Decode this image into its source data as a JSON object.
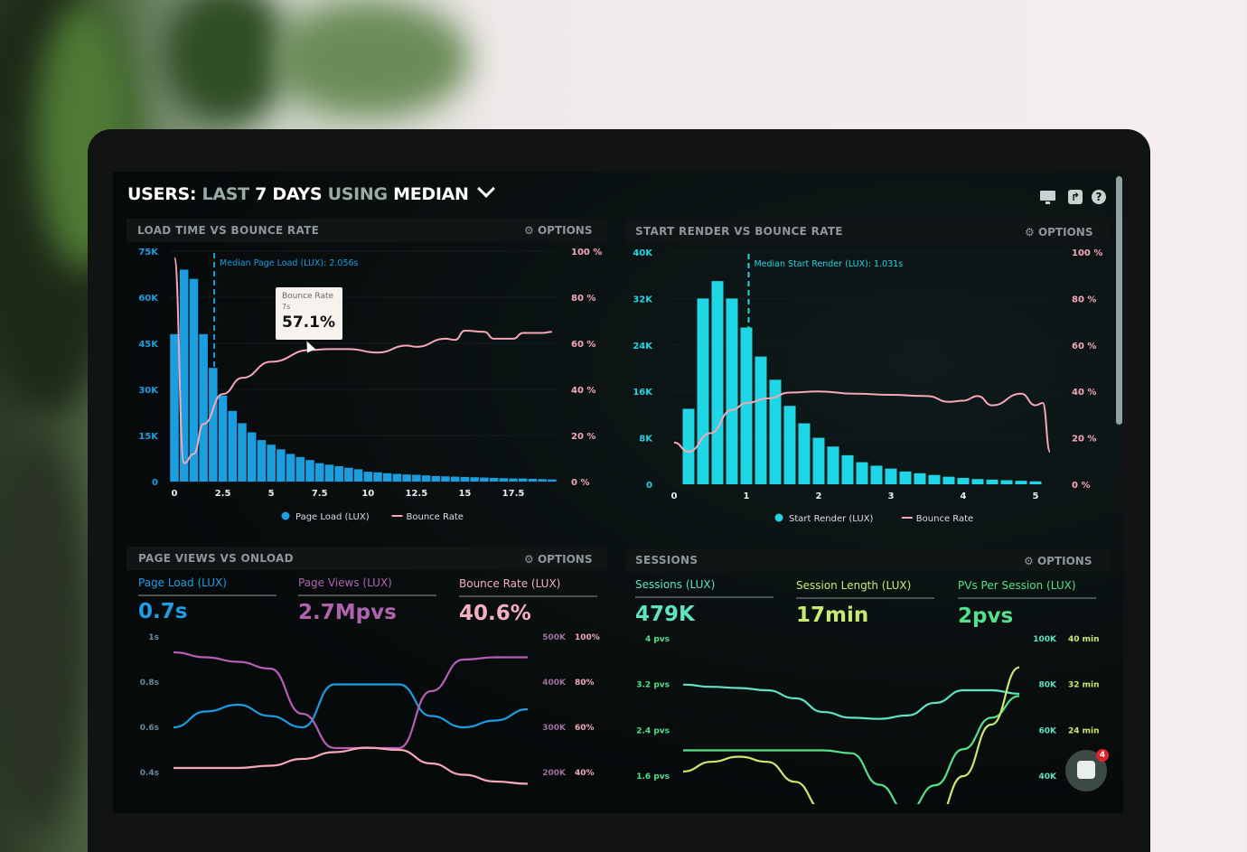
{
  "header": {
    "title_parts": [
      "USERS:",
      "LAST",
      "7 DAYS",
      "USING",
      "MEDIAN"
    ],
    "icons": [
      "monitor-icon",
      "share-icon",
      "help-icon"
    ]
  },
  "options_label": "OPTIONS",
  "colors": {
    "blue": "#1a9ee0",
    "cyan": "#1fd6e4",
    "pink": "#f4a8b8",
    "purple": "#b45fb4",
    "teal": "#5fe3c3",
    "lime": "#c9ea70",
    "green": "#55e08a"
  },
  "panels": {
    "load_time": {
      "title": "LOAD TIME VS BOUNCE RATE"
    },
    "start_render": {
      "title": "START RENDER VS BOUNCE RATE"
    },
    "page_views": {
      "title": "PAGE VIEWS VS ONLOAD",
      "stats": [
        {
          "label": "Page Load (LUX)",
          "value": "0.7s"
        },
        {
          "label": "Page Views (LUX)",
          "value": "2.7Mpvs"
        },
        {
          "label": "Bounce Rate (LUX)",
          "value": "40.6%"
        }
      ]
    },
    "sessions": {
      "title": "SESSIONS",
      "stats": [
        {
          "label": "Sessions (LUX)",
          "value": "479K"
        },
        {
          "label": "Session Length (LUX)",
          "value": "17min"
        },
        {
          "label": "PVs Per Session (LUX)",
          "value": "2pvs"
        }
      ]
    }
  },
  "tooltip": {
    "title": "Bounce Rate",
    "x": "7s",
    "value": "57.1%"
  },
  "chat": {
    "badge": "4"
  },
  "chart_data": [
    {
      "type": "bar",
      "title": "LOAD TIME VS BOUNCE RATE",
      "bin_width": 0.5,
      "x_ticks": [
        "0",
        "2.5",
        "5",
        "7.5",
        "10",
        "12.5",
        "15",
        "17.5"
      ],
      "y_ticks": [
        "0",
        "15K",
        "30K",
        "45K",
        "60K",
        "75K"
      ],
      "y2_ticks": [
        "0 %",
        "20 %",
        "40 %",
        "60 %",
        "80 %",
        "100 %"
      ],
      "ylim": [
        0,
        75000
      ],
      "y2lim": [
        0,
        100
      ],
      "annotation": "Median Page Load (LUX): 2.056s",
      "median": 2.056,
      "legend": [
        "Page Load (LUX)",
        "Bounce Rate"
      ],
      "bars": [
        48,
        69,
        66,
        48,
        37,
        28,
        23,
        19,
        16,
        13.5,
        12,
        10.5,
        9,
        8,
        7,
        6,
        5.5,
        5,
        4.5,
        4,
        3.2,
        3,
        2.7,
        2.5,
        2.3,
        2.2,
        2,
        1.8,
        1.7,
        1.6,
        1.5,
        1.4,
        1.3,
        1.2,
        1.1,
        1,
        1,
        0.9,
        0.8,
        0.7
      ],
      "bars_unit": "K",
      "line": [
        [
          0,
          97
        ],
        [
          0.5,
          8
        ],
        [
          1,
          12
        ],
        [
          1.5,
          25
        ],
        [
          2.5,
          38
        ],
        [
          3.5,
          45
        ],
        [
          5,
          52
        ],
        [
          7,
          57.1
        ],
        [
          8,
          57.5
        ],
        [
          9,
          57.5
        ],
        [
          10.5,
          56
        ],
        [
          12,
          59
        ],
        [
          12.5,
          58.5
        ],
        [
          14,
          62
        ],
        [
          14.5,
          61.5
        ],
        [
          15,
          65.5
        ],
        [
          16,
          65
        ],
        [
          16.5,
          62
        ],
        [
          17.5,
          62
        ],
        [
          18,
          64.5
        ],
        [
          19,
          64.5
        ],
        [
          19.5,
          65
        ]
      ]
    },
    {
      "type": "bar",
      "title": "START RENDER VS BOUNCE RATE",
      "bin_width": 0.2,
      "x_ticks": [
        "0",
        "1",
        "2",
        "3",
        "4",
        "5"
      ],
      "y_ticks": [
        "0",
        "8K",
        "16K",
        "24K",
        "32K",
        "40K"
      ],
      "y2_ticks": [
        "0 %",
        "20 %",
        "40 %",
        "60 %",
        "80 %",
        "100 %"
      ],
      "ylim": [
        0,
        40000
      ],
      "y2lim": [
        0,
        100
      ],
      "annotation": "Median Start Render (LUX): 1.031s",
      "median": 1.031,
      "legend": [
        "Start Render (LUX)",
        "Bounce Rate"
      ],
      "bars": [
        13,
        32,
        35,
        32,
        27,
        22,
        18,
        13.5,
        10.5,
        8,
        6.5,
        5,
        3.8,
        3.2,
        2.7,
        2.2,
        1.9,
        1.6,
        1.3,
        1.1,
        0.9,
        0.8,
        0.7,
        0.6,
        0.5
      ],
      "bars_unit": "K",
      "line": [
        [
          0,
          18
        ],
        [
          0.2,
          14
        ],
        [
          0.5,
          22
        ],
        [
          0.8,
          32
        ],
        [
          1,
          35
        ],
        [
          1.3,
          37
        ],
        [
          1.6,
          39.5
        ],
        [
          2,
          40
        ],
        [
          2.5,
          39
        ],
        [
          3,
          38.5
        ],
        [
          3.5,
          38
        ],
        [
          3.8,
          35.5
        ],
        [
          4,
          36
        ],
        [
          4.2,
          38
        ],
        [
          4.4,
          34
        ],
        [
          4.8,
          39
        ],
        [
          5,
          34
        ],
        [
          5.1,
          35
        ],
        [
          5.2,
          14
        ]
      ]
    },
    {
      "type": "line",
      "title": "PAGE VIEWS VS ONLOAD",
      "y_ticks": [
        "0.4s",
        "0.6s",
        "0.8s",
        "1s"
      ],
      "y2_ticks": [
        "200K",
        "300K",
        "400K",
        "500K"
      ],
      "y3_ticks": [
        "40%",
        "60%",
        "80%",
        "100%"
      ],
      "series": [
        {
          "name": "Page Load (LUX)",
          "axis": "s",
          "ylim": [
            0.4,
            1
          ],
          "values": [
            0.6,
            0.67,
            0.7,
            0.65,
            0.6,
            0.79,
            0.79,
            0.79,
            0.65,
            0.6,
            0.63,
            0.68
          ]
        },
        {
          "name": "Page Views (LUX)",
          "axis": "K",
          "ylim": [
            200,
            500
          ],
          "values": [
            466,
            455,
            445,
            430,
            330,
            254,
            254,
            254,
            380,
            450,
            455,
            455
          ]
        },
        {
          "name": "Bounce Rate (LUX)",
          "axis": "%",
          "ylim": [
            40,
            100
          ],
          "values": [
            42,
            42,
            42,
            43,
            46,
            49,
            51,
            50,
            44,
            39,
            36,
            35
          ]
        }
      ]
    },
    {
      "type": "line",
      "title": "SESSIONS",
      "y_ticks": [
        "1.6 pvs",
        "2.4 pvs",
        "3.2 pvs",
        "4 pvs"
      ],
      "y2_ticks": [
        "40K",
        "60K",
        "80K",
        "100K"
      ],
      "y3_ticks": [
        "",
        "24 min",
        "32 min",
        "40 min"
      ],
      "series": [
        {
          "name": "Sessions (LUX)",
          "axis": "K",
          "ylim": [
            40,
            100
          ],
          "values": [
            80,
            79,
            78.5,
            77.5,
            74,
            68,
            65.5,
            65,
            66.5,
            72,
            77.5,
            77.5,
            76
          ]
        },
        {
          "name": "PVs Per Session (LUX)",
          "axis": "pvs",
          "ylim": [
            1.6,
            4
          ],
          "values": [
            2.05,
            2.05,
            2.05,
            2.05,
            2.05,
            2.05,
            2.0,
            1.45,
            0.97,
            1.44,
            2.07,
            2.62,
            3.0
          ]
        },
        {
          "name": "Session Length (LUX)",
          "axis": "min",
          "ylim": [
            16,
            40
          ],
          "values": [
            16.8,
            18.5,
            19.4,
            18.5,
            15,
            10,
            5,
            3,
            4,
            8,
            16,
            25,
            35
          ]
        }
      ]
    }
  ]
}
